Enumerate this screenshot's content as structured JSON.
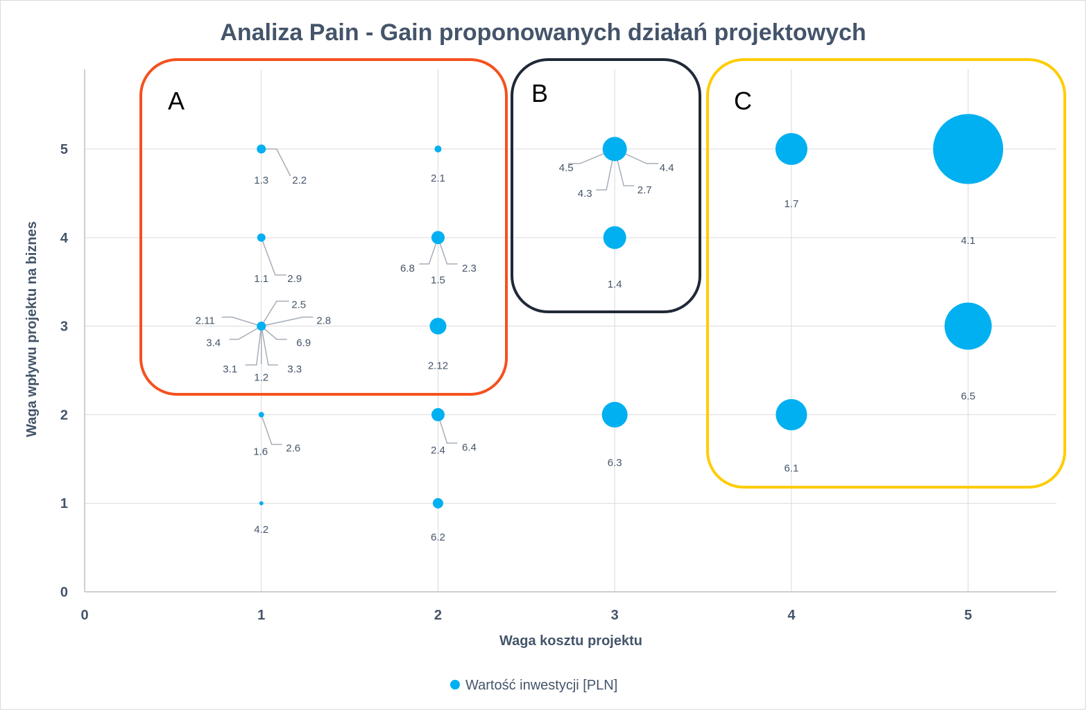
{
  "chart_data": {
    "type": "bubble",
    "title": "Analiza Pain - Gain proponowanych działań projektowych",
    "xlabel": "Waga kosztu projektu",
    "ylabel": "Waga wpływu projektu na biznes",
    "xlim": [
      0,
      5.5
    ],
    "ylim": [
      0,
      5.9
    ],
    "x_ticks": [
      "0",
      "1",
      "2",
      "3",
      "4",
      "5"
    ],
    "y_ticks": [
      "0",
      "1",
      "2",
      "3",
      "4",
      "5"
    ],
    "grid": "vertical-and-horizontal",
    "legend": {
      "position": "bottom",
      "entries": [
        "Wartość inwestycji [PLN]"
      ]
    },
    "series": [
      {
        "name": "Wartość inwestycji [PLN]",
        "color": "#00b0f0",
        "points": [
          {
            "x": 1,
            "y": 5,
            "size": 13,
            "labels": [
              "1.3",
              "2.2"
            ]
          },
          {
            "x": 2,
            "y": 5,
            "size": 10,
            "labels": [
              "2.1"
            ]
          },
          {
            "x": 3,
            "y": 5,
            "size": 35,
            "labels": [
              "4.5",
              "4.4",
              "4.3",
              "2.7"
            ]
          },
          {
            "x": 4,
            "y": 5,
            "size": 46,
            "labels": [
              "1.7"
            ]
          },
          {
            "x": 5,
            "y": 5,
            "size": 101,
            "labels": [
              "4.1"
            ]
          },
          {
            "x": 1,
            "y": 4,
            "size": 12,
            "labels": [
              "1.1",
              "2.9"
            ]
          },
          {
            "x": 2,
            "y": 4,
            "size": 19,
            "labels": [
              "6.8",
              "2.3",
              "1.5"
            ]
          },
          {
            "x": 3,
            "y": 4,
            "size": 33,
            "labels": [
              "1.4"
            ]
          },
          {
            "x": 1,
            "y": 3,
            "size": 13,
            "labels": [
              "2.5",
              "2.11",
              "2.8",
              "3.4",
              "6.9",
              "3.1",
              "3.3",
              "1.2"
            ]
          },
          {
            "x": 2,
            "y": 3,
            "size": 24,
            "labels": [
              "2.12"
            ]
          },
          {
            "x": 5,
            "y": 3,
            "size": 68,
            "labels": [
              "6.5"
            ]
          },
          {
            "x": 1,
            "y": 2,
            "size": 8,
            "labels": [
              "1.6",
              "2.6"
            ]
          },
          {
            "x": 2,
            "y": 2,
            "size": 19,
            "labels": [
              "2.4",
              "6.4"
            ]
          },
          {
            "x": 3,
            "y": 2,
            "size": 37,
            "labels": [
              "6.3"
            ]
          },
          {
            "x": 4,
            "y": 2,
            "size": 45,
            "labels": [
              "6.1"
            ]
          },
          {
            "x": 1,
            "y": 1,
            "size": 6,
            "labels": [
              "4.2"
            ]
          },
          {
            "x": 2,
            "y": 1,
            "size": 15,
            "labels": [
              "6.2"
            ]
          }
        ]
      }
    ],
    "annotations": [
      {
        "label": "A",
        "color": "#f4511e",
        "x_range": [
          0.3,
          2.35
        ],
        "y_range": [
          2.25,
          5.75
        ]
      },
      {
        "label": "B",
        "color": "#1f2937",
        "x_range": [
          2.45,
          3.5
        ],
        "y_range": [
          3.15,
          5.75
        ]
      },
      {
        "label": "C",
        "color": "#ffcc00",
        "x_range": [
          3.5,
          5.55
        ],
        "y_range": [
          1.15,
          5.75
        ]
      }
    ]
  }
}
